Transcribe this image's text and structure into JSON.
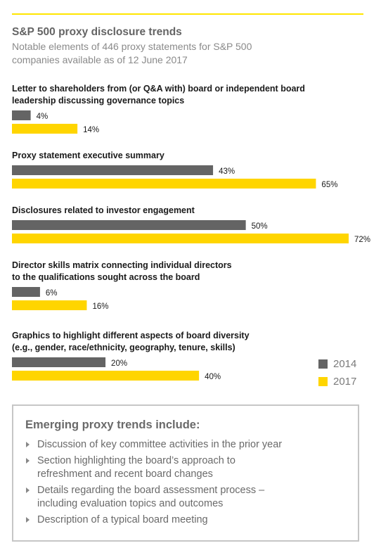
{
  "header": {
    "title": "S&P 500 proxy disclosure trends",
    "subtitle": "Notable elements of 446 proxy statements for S&P 500 companies available as of 12 June 2017"
  },
  "colors": {
    "accent": "#ffe600",
    "series_2014": "#646464",
    "series_2017": "#ffd500"
  },
  "chart_data": {
    "type": "bar",
    "orientation": "horizontal",
    "title": "S&P 500 proxy disclosure trends",
    "subtitle": "Notable elements of 446 proxy statements for S&P 500 companies available as of 12 June 2017",
    "unit": "%",
    "categories": [
      {
        "lines": [
          "Letter to shareholders from (or Q&A with) board or independent board",
          "leadership discussing governance topics"
        ]
      },
      {
        "lines": [
          "Proxy statement executive summary"
        ]
      },
      {
        "lines": [
          "Disclosures related to investor engagement"
        ]
      },
      {
        "lines": [
          "Director skills matrix connecting individual directors",
          "to the qualifications sought across the board"
        ]
      },
      {
        "lines": [
          "Graphics to highlight different aspects of board diversity",
          "(e.g., gender, race/ethnicity, geography, tenure, skills)"
        ]
      }
    ],
    "series": [
      {
        "name": "2014",
        "color": "#646464",
        "values": [
          4,
          43,
          50,
          6,
          20
        ],
        "labels": [
          "4%",
          "43%",
          "50%",
          "6%",
          "20%"
        ]
      },
      {
        "name": "2017",
        "color": "#ffd500",
        "values": [
          14,
          65,
          72,
          16,
          40
        ],
        "labels": [
          "14%",
          "65%",
          "72%",
          "16%",
          "40%"
        ]
      }
    ],
    "xlim": [
      0,
      72
    ],
    "grid": false,
    "legend": "bottom-right"
  },
  "legend": {
    "items": [
      {
        "label": "2014",
        "color": "#646464"
      },
      {
        "label": "2017",
        "color": "#ffd500"
      }
    ]
  },
  "trends": {
    "title": "Emerging proxy trends include:",
    "items": [
      {
        "lines": [
          "Discussion of key committee activities in the prior year"
        ]
      },
      {
        "lines": [
          "Section highlighting the board’s approach to",
          "refreshment and recent board changes"
        ]
      },
      {
        "lines": [
          "Details regarding the board assessment process –",
          "including evaluation topics and outcomes"
        ]
      },
      {
        "lines": [
          "Description of a typical board meeting"
        ]
      }
    ]
  }
}
